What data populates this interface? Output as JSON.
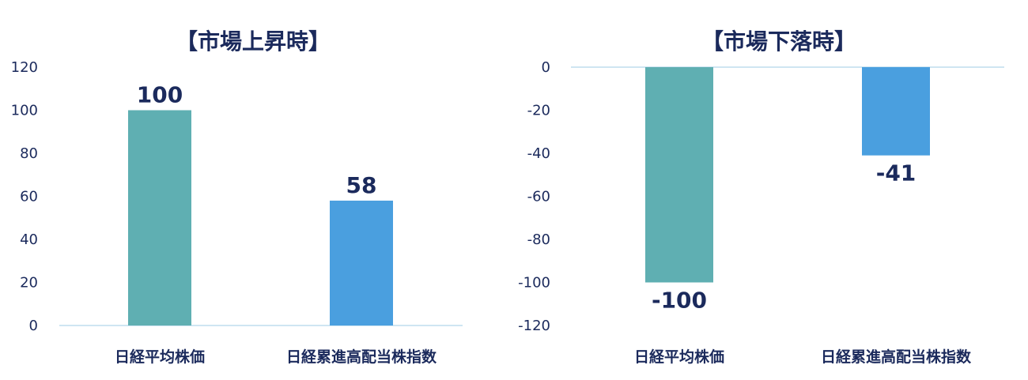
{
  "colors": {
    "series_a": "#5fafb2",
    "series_b": "#4a9fdf",
    "text": "#1b2a5c",
    "axis": "#cfe5f2"
  },
  "chart_data": [
    {
      "type": "bar",
      "title": "【市場上昇時】",
      "categories": [
        "日経平均株価",
        "日経累進高配当株指数"
      ],
      "values": [
        100,
        58
      ],
      "data_labels": [
        "100",
        "58"
      ],
      "yticks": [
        "120",
        "100",
        "80",
        "60",
        "40",
        "20",
        "0"
      ],
      "ylim": [
        0,
        120
      ],
      "grid": false
    },
    {
      "type": "bar",
      "title": "【市場下落時】",
      "categories": [
        "日経平均株価",
        "日経累進高配当株指数"
      ],
      "values": [
        -100,
        -41
      ],
      "data_labels": [
        "-100",
        "-41"
      ],
      "yticks": [
        "0",
        "-20",
        "-40",
        "-60",
        "-80",
        "-100",
        "-120"
      ],
      "ylim": [
        -120,
        0
      ],
      "grid": false
    }
  ]
}
